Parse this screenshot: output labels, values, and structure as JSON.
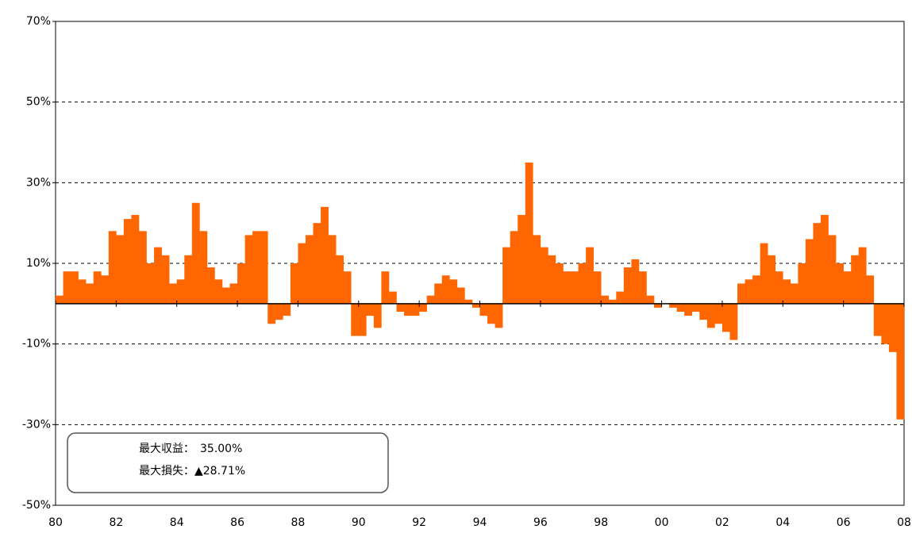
{
  "chart_data": {
    "type": "bar",
    "x": [
      1980,
      1980.25,
      1980.5,
      1980.75,
      1981,
      1981.25,
      1981.5,
      1981.75,
      1982,
      1982.25,
      1982.5,
      1982.75,
      1983,
      1983.25,
      1983.5,
      1983.75,
      1984,
      1984.25,
      1984.5,
      1984.75,
      1985,
      1985.25,
      1985.5,
      1985.75,
      1986,
      1986.25,
      1986.5,
      1986.75,
      1987,
      1987.25,
      1987.5,
      1987.75,
      1988,
      1988.25,
      1988.5,
      1988.75,
      1989,
      1989.25,
      1989.5,
      1989.75,
      1990,
      1990.25,
      1990.5,
      1990.75,
      1991,
      1991.25,
      1991.5,
      1991.75,
      1992,
      1992.25,
      1992.5,
      1992.75,
      1993,
      1993.25,
      1993.5,
      1993.75,
      1994,
      1994.25,
      1994.5,
      1994.75,
      1995,
      1995.25,
      1995.5,
      1995.75,
      1996,
      1996.25,
      1996.5,
      1996.75,
      1997,
      1997.25,
      1997.5,
      1997.75,
      1998,
      1998.25,
      1998.5,
      1998.75,
      1999,
      1999.25,
      1999.5,
      1999.75,
      2000,
      2000.25,
      2000.5,
      2000.75,
      2001,
      2001.25,
      2001.5,
      2001.75,
      2002,
      2002.25,
      2002.5,
      2002.75,
      2003,
      2003.25,
      2003.5,
      2003.75,
      2004,
      2004.25,
      2004.5,
      2004.75,
      2005,
      2005.25,
      2005.5,
      2005.75,
      2006,
      2006.25,
      2006.5,
      2006.75,
      2007,
      2007.25,
      2007.5,
      2007.75
    ],
    "values": [
      2,
      8,
      8,
      6,
      5,
      8,
      7,
      18,
      17,
      21,
      22,
      18,
      10,
      14,
      12,
      5,
      6,
      12,
      25,
      18,
      9,
      6,
      4,
      5,
      10,
      17,
      18,
      18,
      -5,
      -4,
      -3,
      10,
      15,
      17,
      20,
      24,
      17,
      12,
      8,
      -8,
      -8,
      -3,
      -6,
      8,
      3,
      -2,
      -3,
      -3,
      -2,
      2,
      5,
      7,
      6,
      4,
      1,
      -1,
      -3,
      -5,
      -6,
      14,
      18,
      22,
      35,
      17,
      14,
      12,
      10,
      8,
      8,
      10,
      14,
      8,
      2,
      1,
      3,
      9,
      11,
      8,
      2,
      -1,
      0,
      -1,
      -2,
      -3,
      -2,
      -4,
      -6,
      -5,
      -7,
      -9,
      5,
      6,
      7,
      15,
      12,
      8,
      6,
      5,
      10,
      16,
      20,
      22,
      17,
      10,
      8,
      12,
      14,
      7,
      -8,
      -10,
      -12,
      -28.71
    ],
    "color": "#ff6600",
    "xlim": [
      1980,
      2008
    ],
    "xticks": [
      {
        "value": 1980,
        "label": "80"
      },
      {
        "value": 1982,
        "label": "82"
      },
      {
        "value": 1984,
        "label": "84"
      },
      {
        "value": 1986,
        "label": "86"
      },
      {
        "value": 1988,
        "label": "88"
      },
      {
        "value": 1990,
        "label": "90"
      },
      {
        "value": 1992,
        "label": "92"
      },
      {
        "value": 1994,
        "label": "94"
      },
      {
        "value": 1996,
        "label": "96"
      },
      {
        "value": 1998,
        "label": "98"
      },
      {
        "value": 2000,
        "label": "00"
      },
      {
        "value": 2002,
        "label": "02"
      },
      {
        "value": 2004,
        "label": "04"
      },
      {
        "value": 2006,
        "label": "06"
      },
      {
        "value": 2008,
        "label": "08"
      }
    ],
    "ylim": [
      -50,
      70
    ],
    "yticks": [
      {
        "value": 70,
        "label": "70%"
      },
      {
        "value": 50,
        "label": "50%"
      },
      {
        "value": 30,
        "label": "30%"
      },
      {
        "value": 10,
        "label": "10%"
      },
      {
        "value": -10,
        "label": "-10%"
      },
      {
        "value": -30,
        "label": "-30%"
      },
      {
        "value": -50,
        "label": "-50%"
      }
    ],
    "grid": true,
    "annotations": [
      "最大収益：　35.00%",
      "最大損失：▲28.71%"
    ]
  }
}
